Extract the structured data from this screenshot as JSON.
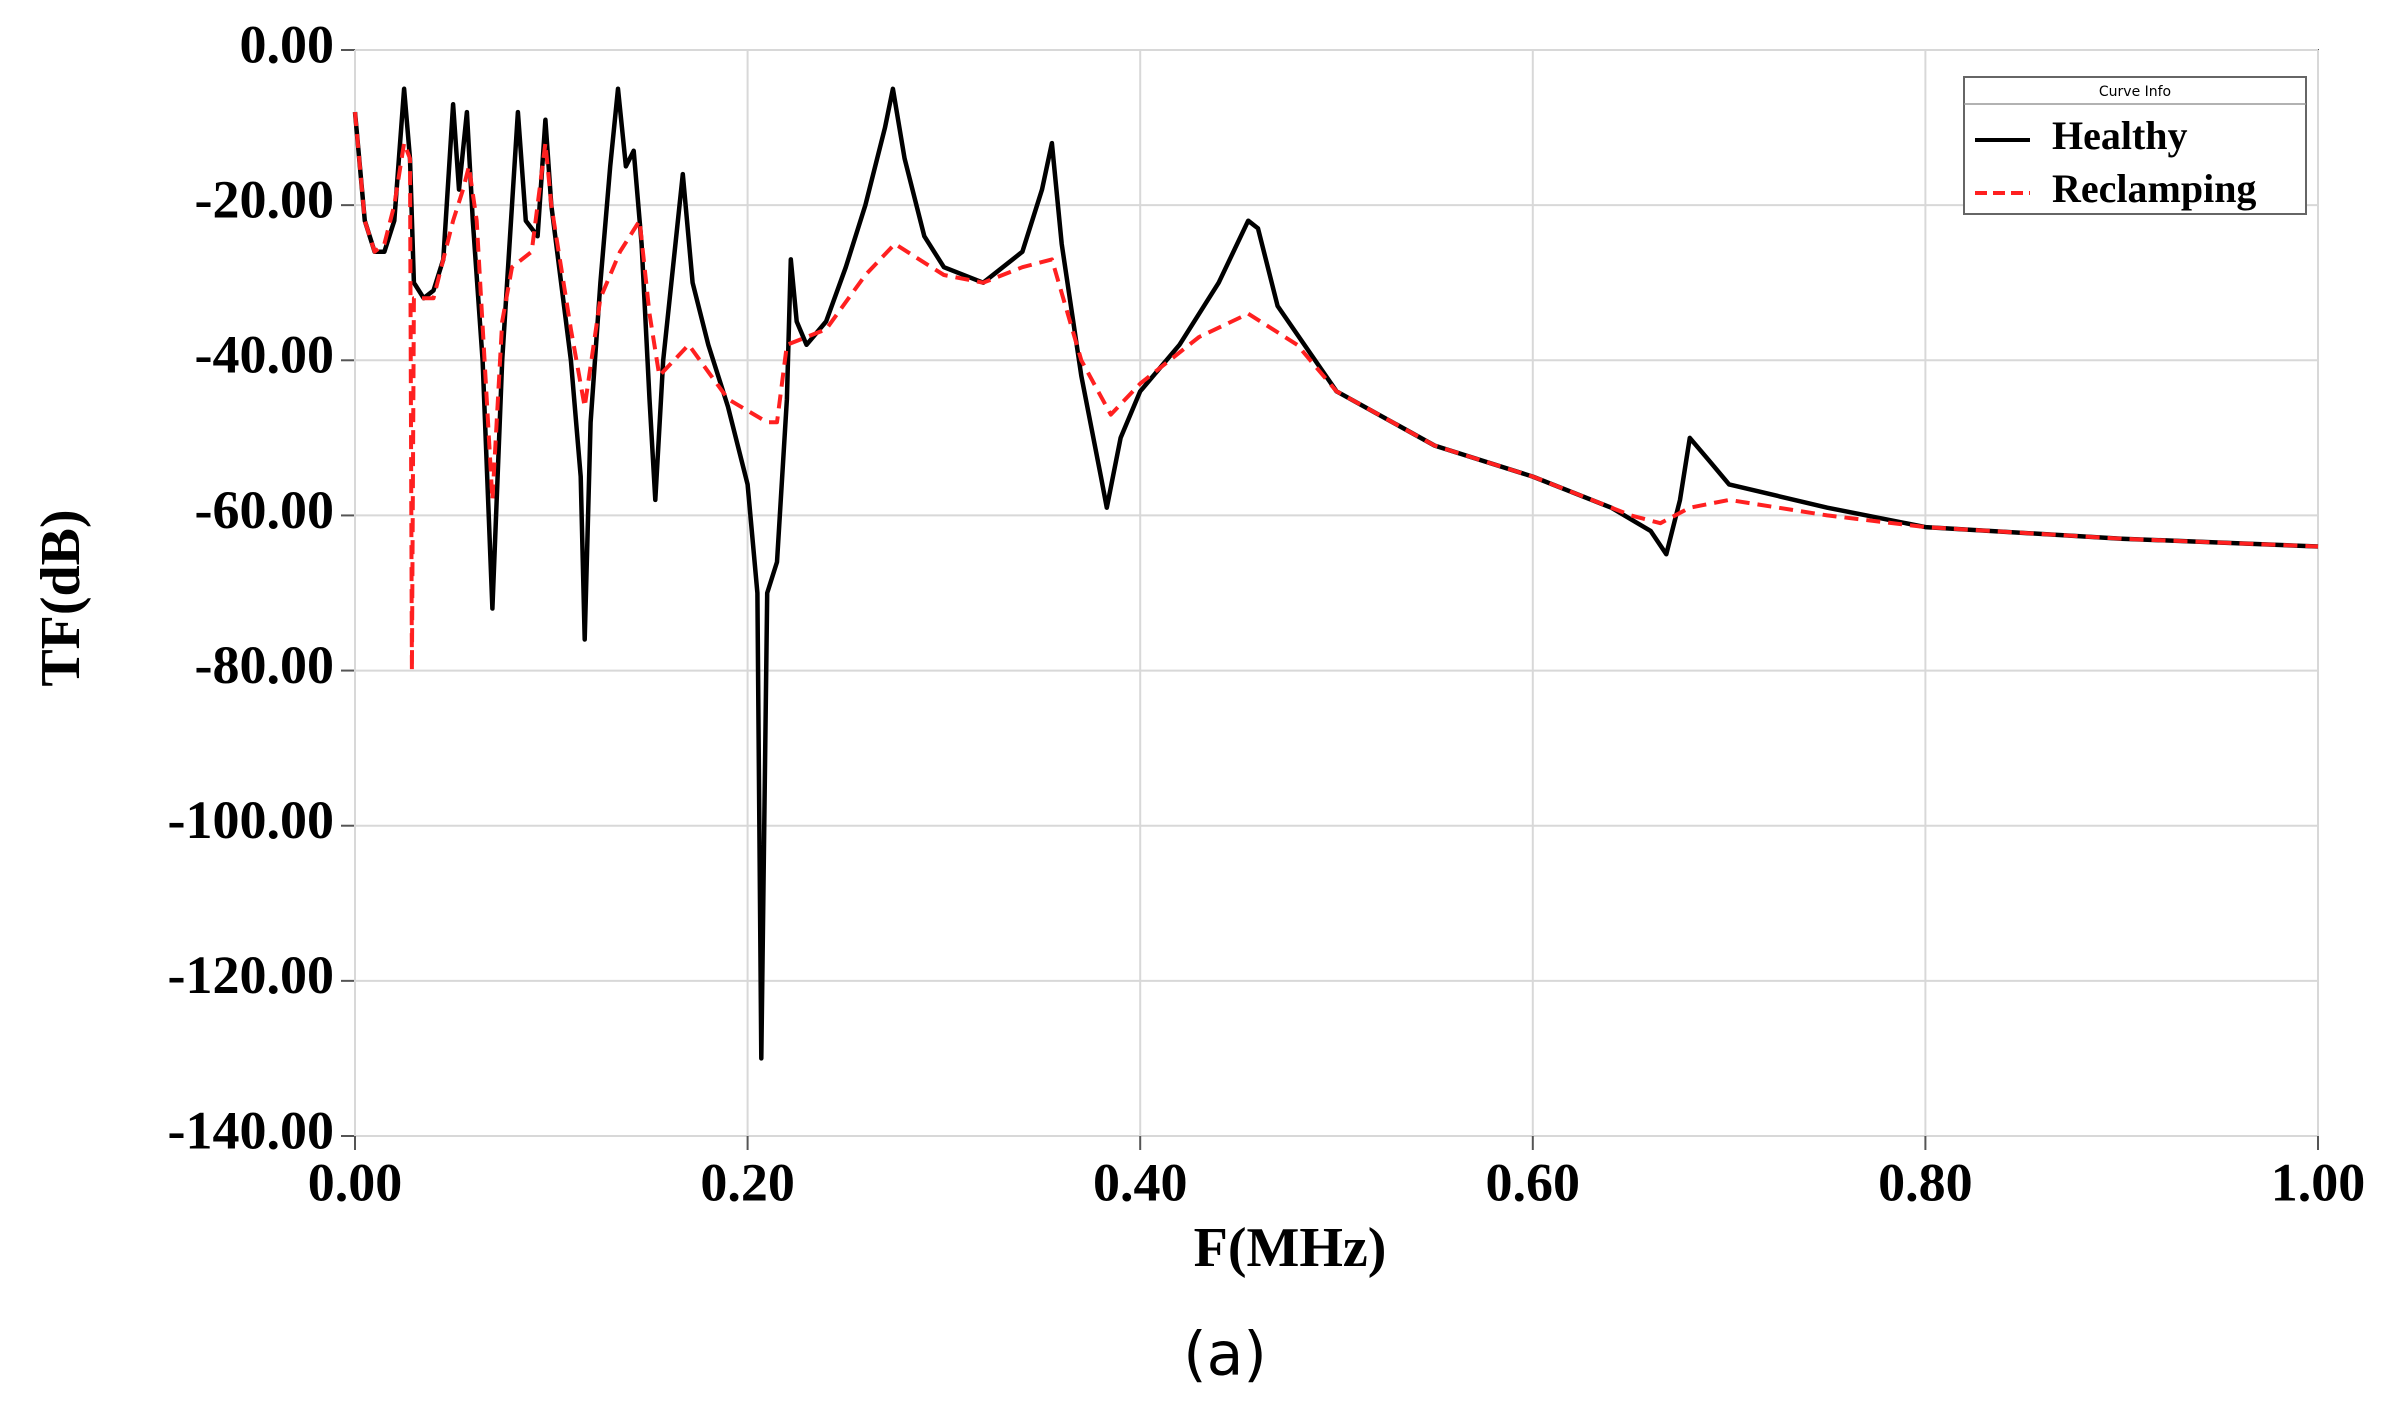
{
  "chart_data": {
    "type": "line",
    "caption": "(a)",
    "x_label": "F(MHz)",
    "y_label": "TF(dB)",
    "legend_title": "Curve Info",
    "legend": "upper right",
    "grid": true,
    "xlim": [
      0,
      1
    ],
    "ylim": [
      -140,
      0
    ],
    "xticks": [
      {
        "value": 0,
        "label": "0.00"
      },
      {
        "value": 0.2,
        "label": "0.20"
      },
      {
        "value": 0.4,
        "label": "0.40"
      },
      {
        "value": 0.6,
        "label": "0.60"
      },
      {
        "value": 0.8,
        "label": "0.80"
      },
      {
        "value": 1,
        "label": "1.00"
      }
    ],
    "yticks": [
      {
        "value": 0,
        "label": "0.00"
      },
      {
        "value": -20,
        "label": "-20.00"
      },
      {
        "value": -40,
        "label": "-40.00"
      },
      {
        "value": -60,
        "label": "-60.00"
      },
      {
        "value": -80,
        "label": "-80.00"
      },
      {
        "value": -100,
        "label": "-100.00"
      },
      {
        "value": -120,
        "label": "-120.00"
      },
      {
        "value": -140,
        "label": "-140.00"
      }
    ],
    "series": [
      {
        "name": "Healthy",
        "color": "#000000",
        "dash": false,
        "x": [
          0,
          0.005,
          0.01,
          0.015,
          0.02,
          0.025,
          0.028,
          0.03,
          0.035,
          0.04,
          0.045,
          0.05,
          0.053,
          0.057,
          0.06,
          0.065,
          0.07,
          0.075,
          0.08,
          0.083,
          0.087,
          0.093,
          0.097,
          0.1,
          0.105,
          0.11,
          0.115,
          0.117,
          0.12,
          0.125,
          0.13,
          0.134,
          0.138,
          0.142,
          0.146,
          0.15,
          0.153,
          0.157,
          0.162,
          0.167,
          0.172,
          0.18,
          0.19,
          0.2,
          0.205,
          0.207,
          0.21,
          0.215,
          0.22,
          0.222,
          0.225,
          0.23,
          0.24,
          0.25,
          0.26,
          0.27,
          0.274,
          0.28,
          0.29,
          0.3,
          0.32,
          0.34,
          0.35,
          0.355,
          0.36,
          0.37,
          0.38,
          0.383,
          0.39,
          0.4,
          0.42,
          0.44,
          0.455,
          0.46,
          0.47,
          0.5,
          0.55,
          0.6,
          0.64,
          0.66,
          0.668,
          0.675,
          0.68,
          0.69,
          0.7,
          0.75,
          0.8,
          0.9,
          1.0
        ],
        "values": [
          -8,
          -22,
          -26,
          -26,
          -22,
          -5,
          -14,
          -30,
          -32,
          -31,
          -27,
          -7,
          -18,
          -8,
          -22,
          -40,
          -72,
          -40,
          -20,
          -8,
          -22,
          -24,
          -9,
          -20,
          -30,
          -40,
          -55,
          -76,
          -48,
          -30,
          -15,
          -5,
          -15,
          -13,
          -25,
          -45,
          -58,
          -40,
          -28,
          -16,
          -30,
          -38,
          -46,
          -56,
          -70,
          -130,
          -70,
          -66,
          -45,
          -27,
          -35,
          -38,
          -35,
          -28,
          -20,
          -10,
          -5,
          -14,
          -24,
          -28,
          -30,
          -26,
          -18,
          -12,
          -25,
          -42,
          -55,
          -59,
          -50,
          -44,
          -38,
          -30,
          -22,
          -23,
          -33,
          -44,
          -51,
          -55,
          -59,
          -62,
          -65,
          -58,
          -50,
          -53,
          -56,
          -59,
          -61.5,
          -63,
          -64
        ]
      },
      {
        "name": "Reclamping",
        "color": "#ff2020",
        "dash": true,
        "x": [
          0,
          0.005,
          0.01,
          0.015,
          0.02,
          0.025,
          0.028,
          0.029,
          0.03,
          0.04,
          0.05,
          0.055,
          0.058,
          0.062,
          0.07,
          0.075,
          0.08,
          0.09,
          0.097,
          0.1,
          0.11,
          0.117,
          0.125,
          0.135,
          0.145,
          0.15,
          0.155,
          0.17,
          0.19,
          0.21,
          0.215,
          0.22,
          0.24,
          0.26,
          0.275,
          0.3,
          0.32,
          0.34,
          0.355,
          0.37,
          0.385,
          0.4,
          0.43,
          0.455,
          0.48,
          0.5,
          0.55,
          0.6,
          0.65,
          0.665,
          0.68,
          0.7,
          0.75,
          0.8,
          0.9,
          1.0
        ],
        "values": [
          -8,
          -22,
          -26,
          -25,
          -20,
          -12,
          -14,
          -80,
          -32,
          -32,
          -22,
          -18,
          -15,
          -22,
          -58,
          -35,
          -28,
          -26,
          -12,
          -20,
          -36,
          -46,
          -32,
          -26,
          -22,
          -34,
          -42,
          -38,
          -45,
          -48,
          -48,
          -38,
          -36,
          -29,
          -25,
          -29,
          -30,
          -28,
          -27,
          -40,
          -47,
          -43,
          -37,
          -34,
          -38,
          -44,
          -51,
          -55,
          -60,
          -61,
          -59,
          -58,
          -60,
          -61.5,
          -63,
          -64
        ]
      }
    ]
  }
}
